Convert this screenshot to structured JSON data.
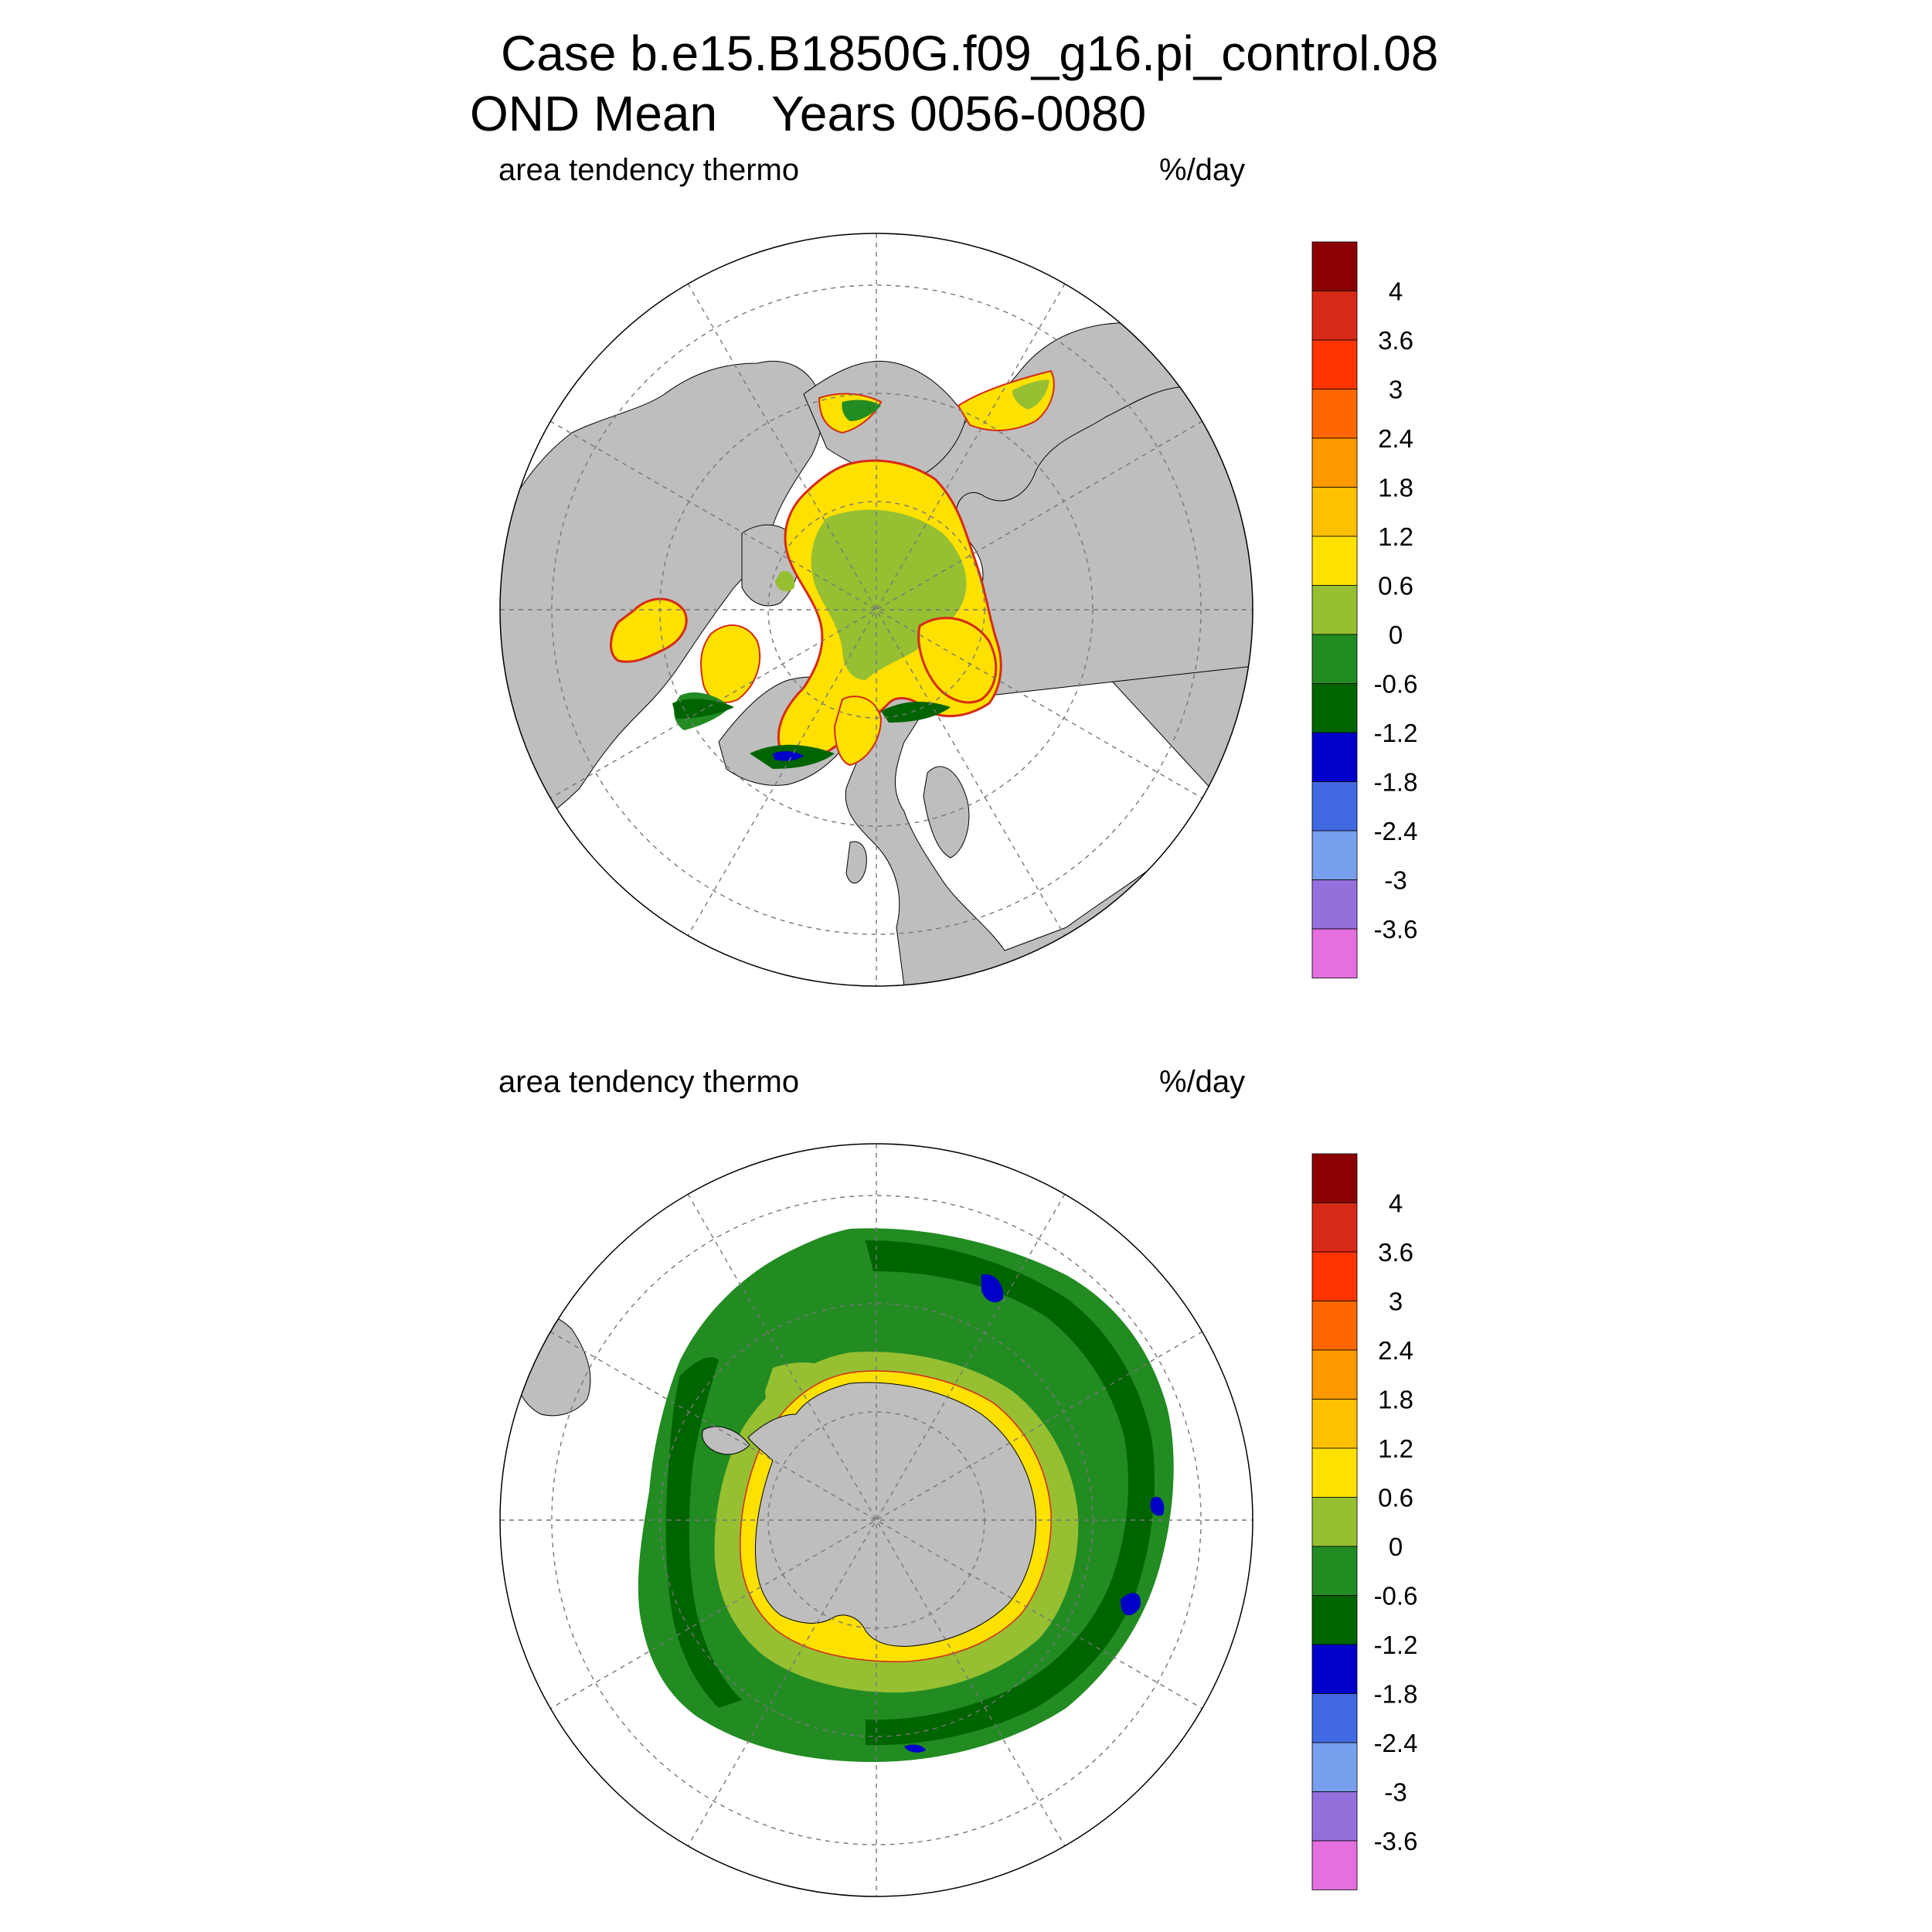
{
  "title": {
    "line1": "Case b.e15.B1850G.f09_g16.pi_control.08",
    "line2": "OND Mean    Years 0056-0080"
  },
  "panels": [
    {
      "id": "north",
      "hemisphere": "Northern",
      "left_label": "area tendency thermo",
      "right_label": "%/day"
    },
    {
      "id": "south",
      "hemisphere": "Southern",
      "left_label": "area tendency thermo",
      "right_label": "%/day"
    }
  ],
  "colorbar": {
    "colors": [
      "#8b0000",
      "#d62a16",
      "#ff3300",
      "#ff6600",
      "#ff9900",
      "#ffc000",
      "#ffe100",
      "#96bf32",
      "#228b22",
      "#006400",
      "#0000c8",
      "#4169e1",
      "#789fee",
      "#9370db",
      "#e36fe0"
    ],
    "labels": [
      "4",
      "3.6",
      "3",
      "2.4",
      "1.8",
      "1.2",
      "0.6",
      "0",
      "-0.6",
      "-1.2",
      "-1.8",
      "-2.4",
      "-3",
      "-3.6"
    ]
  },
  "colors": {
    "land": "#bebebe",
    "grid": "#777777",
    "ice_positive": "#96bf32",
    "ice_strong_negative": "#006400",
    "ice_negative": "#228b22",
    "ice_edge": "#ffe100"
  }
}
